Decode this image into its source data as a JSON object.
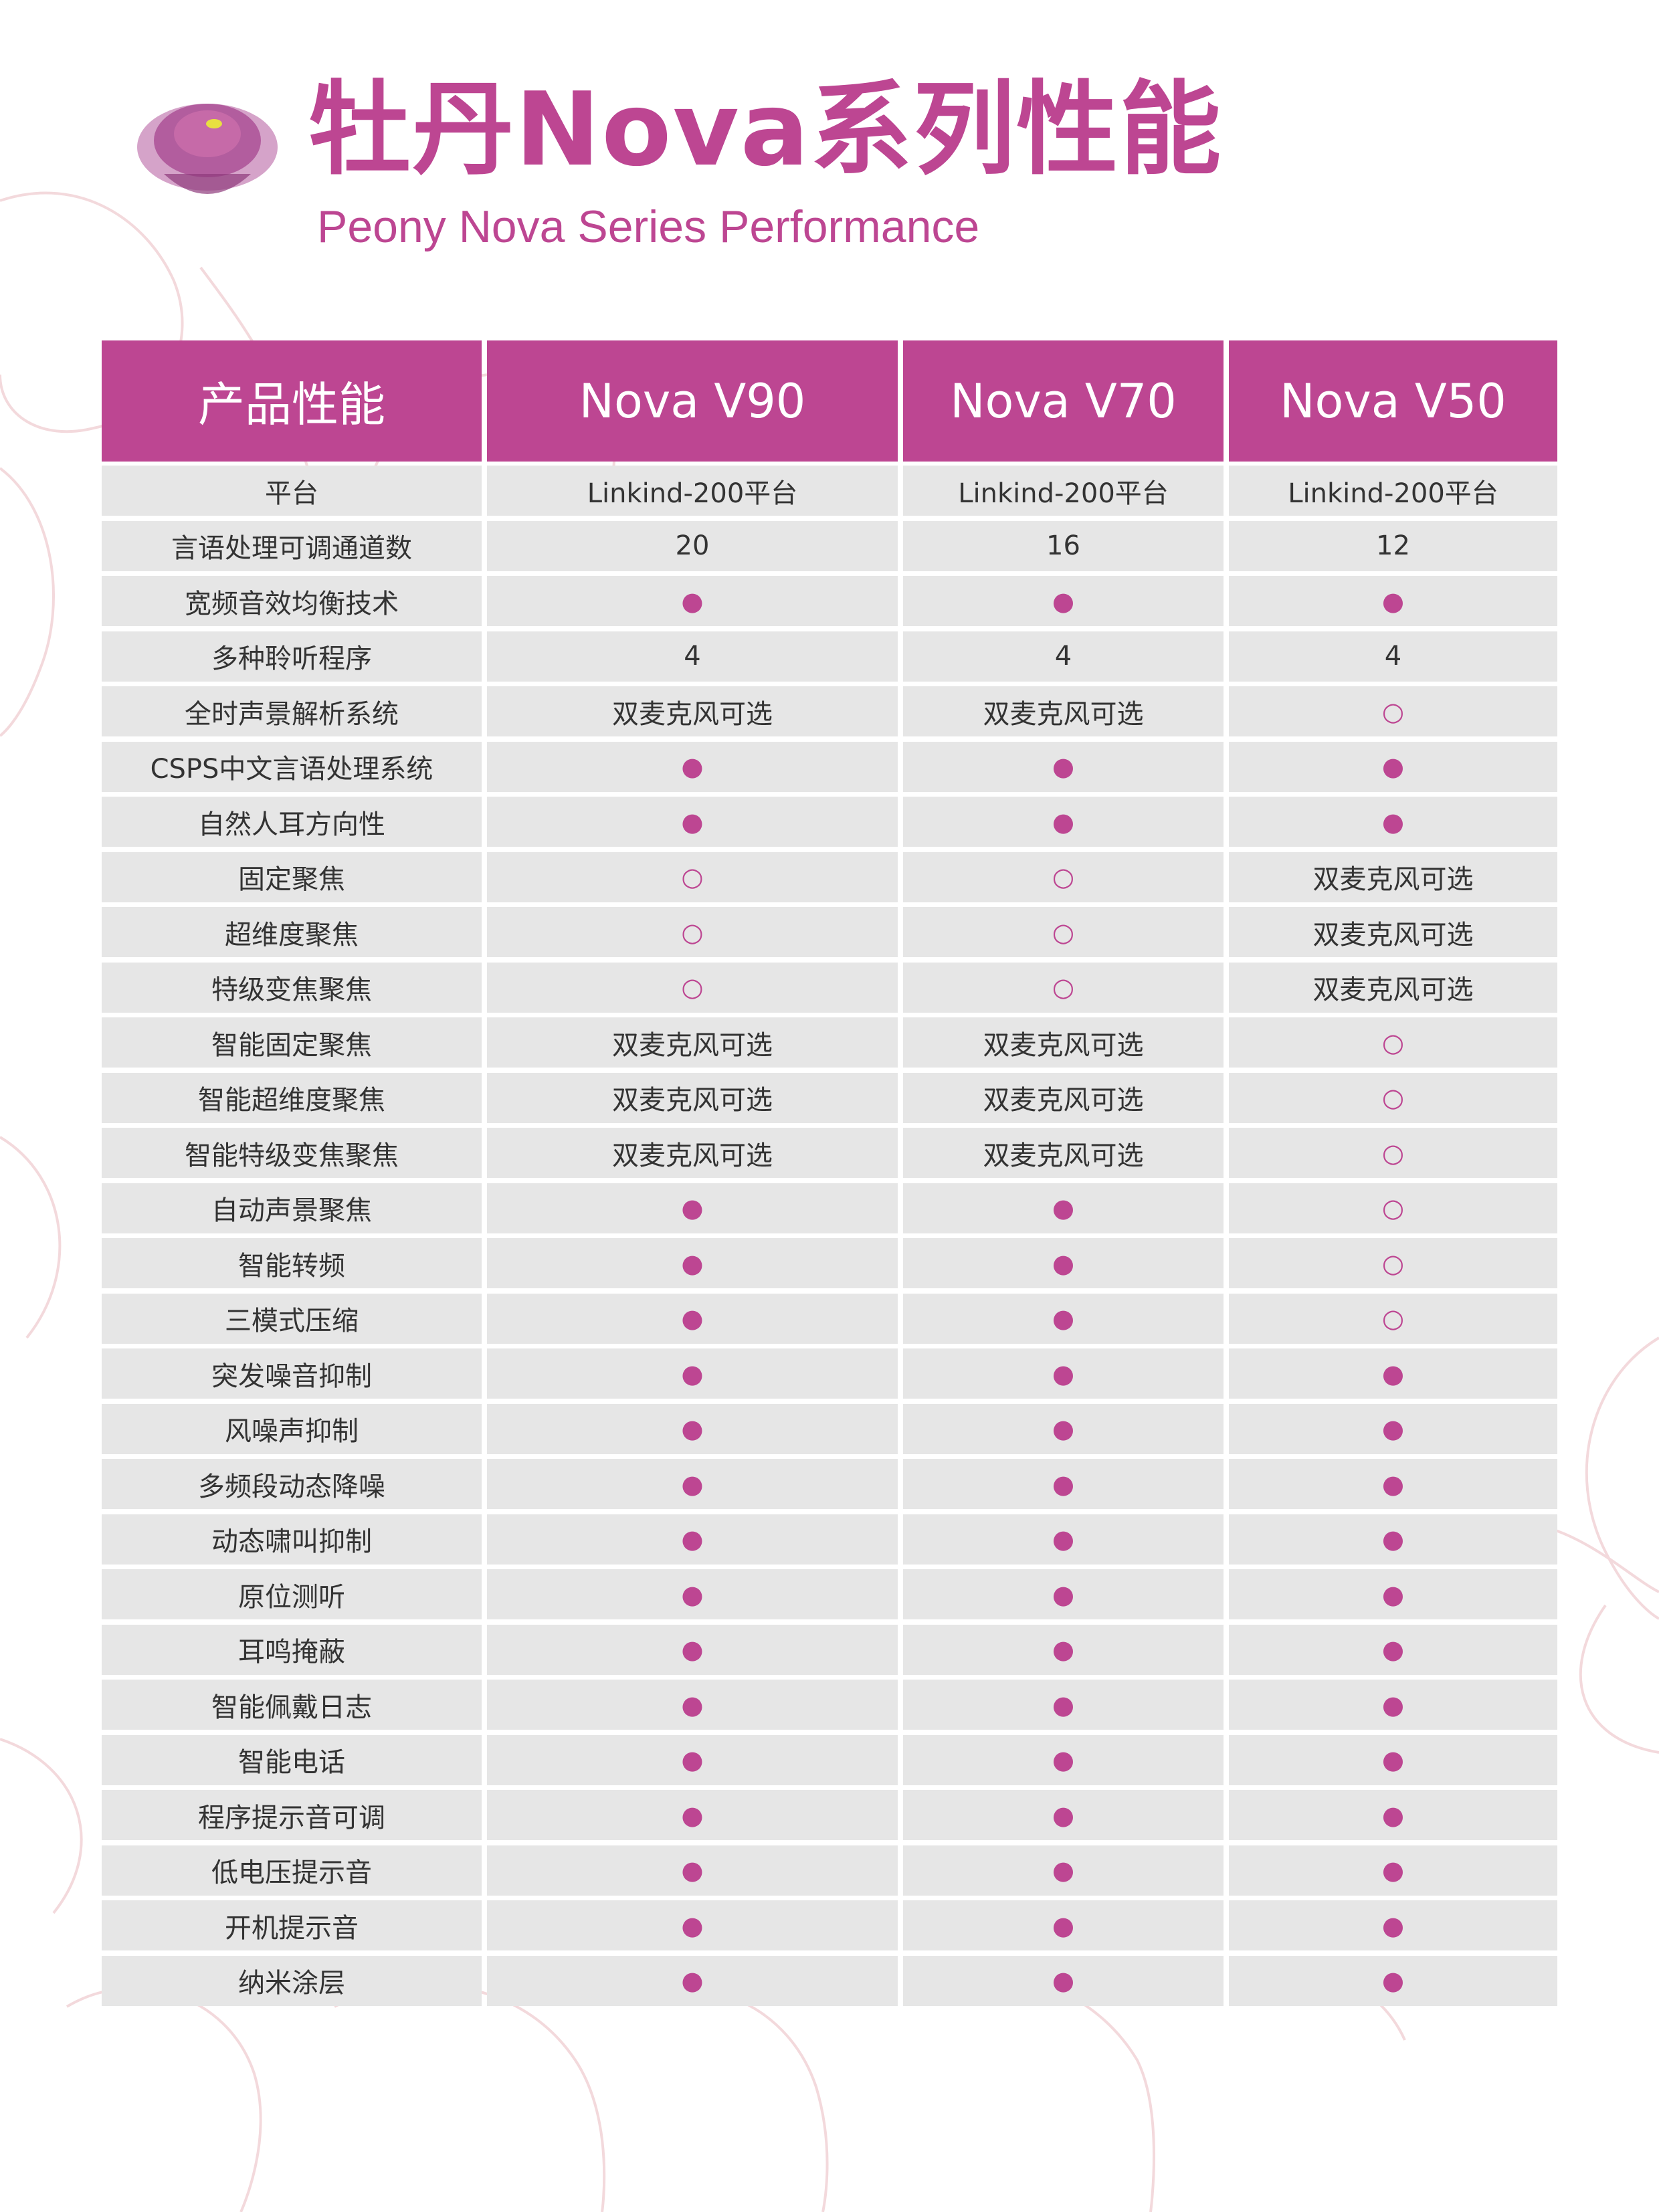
{
  "header": {
    "title": "牡丹Nova系列性能",
    "subtitle": "Peony Nova Series Performance"
  },
  "colors": {
    "accent": "#bd4692",
    "cell_bg": "#e6e6e6",
    "text": "#333333"
  },
  "table": {
    "columns": [
      "产品性能",
      "Nova V90",
      "Nova V70",
      "Nova V50"
    ],
    "rows": [
      [
        "平台",
        "Linkind-200平台",
        "Linkind-200平台",
        "Linkind-200平台"
      ],
      [
        "言语处理可调通道数",
        "20",
        "16",
        "12"
      ],
      [
        "宽频音效均衡技术",
        "●",
        "●",
        "●"
      ],
      [
        "多种聆听程序",
        "4",
        "4",
        "4"
      ],
      [
        "全时声景解析系统",
        "双麦克风可选",
        "双麦克风可选",
        "○"
      ],
      [
        "CSPS中文言语处理系统",
        "●",
        "●",
        "●"
      ],
      [
        "自然人耳方向性",
        "●",
        "●",
        "●"
      ],
      [
        "固定聚焦",
        "○",
        "○",
        "双麦克风可选"
      ],
      [
        "超维度聚焦",
        "○",
        "○",
        "双麦克风可选"
      ],
      [
        "特级变焦聚焦",
        "○",
        "○",
        "双麦克风可选"
      ],
      [
        "智能固定聚焦",
        "双麦克风可选",
        "双麦克风可选",
        "○"
      ],
      [
        "智能超维度聚焦",
        "双麦克风可选",
        "双麦克风可选",
        "○"
      ],
      [
        "智能特级变焦聚焦",
        "双麦克风可选",
        "双麦克风可选",
        "○"
      ],
      [
        "自动声景聚焦",
        "●",
        "●",
        "○"
      ],
      [
        "智能转频",
        "●",
        "●",
        "○"
      ],
      [
        "三模式压缩",
        "●",
        "●",
        "○"
      ],
      [
        "突发噪音抑制",
        "●",
        "●",
        "●"
      ],
      [
        "风噪声抑制",
        "●",
        "●",
        "●"
      ],
      [
        "多频段动态降噪",
        "●",
        "●",
        "●"
      ],
      [
        "动态啸叫抑制",
        "●",
        "●",
        "●"
      ],
      [
        "原位测听",
        "●",
        "●",
        "●"
      ],
      [
        "耳鸣掩蔽",
        "●",
        "●",
        "●"
      ],
      [
        "智能佩戴日志",
        "●",
        "●",
        "●"
      ],
      [
        "智能电话",
        "●",
        "●",
        "●"
      ],
      [
        "程序提示音可调",
        "●",
        "●",
        "●"
      ],
      [
        "低电压提示音",
        "●",
        "●",
        "●"
      ],
      [
        "开机提示音",
        "●",
        "●",
        "●"
      ],
      [
        "纳米涂层",
        "●",
        "●",
        "●"
      ]
    ]
  }
}
